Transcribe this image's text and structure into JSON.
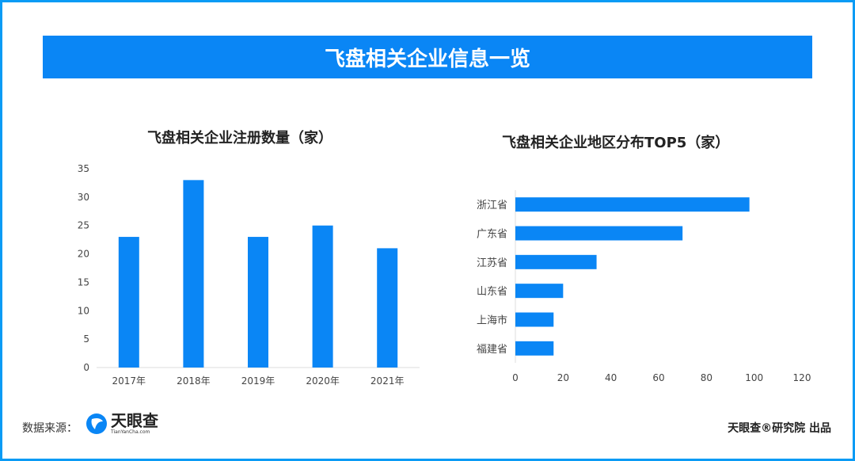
{
  "header": {
    "title": "飞盘相关企业信息一览"
  },
  "footer": {
    "source_label": "数据来源：",
    "logo_text": "天眼查",
    "logo_sub": "TianYanCha.com",
    "publisher": "天眼查®研究院 出品"
  },
  "colors": {
    "bar": "#0a86f5",
    "banner": "#0a86f5",
    "frame": "#0a9bf5"
  },
  "chart_data": [
    {
      "type": "bar",
      "title": "飞盘相关企业注册数量（家）",
      "categories": [
        "2017年",
        "2018年",
        "2019年",
        "2020年",
        "2021年"
      ],
      "values": [
        23,
        33,
        23,
        25,
        21
      ],
      "ylim": [
        0,
        35
      ],
      "yticks": [
        0,
        5,
        10,
        15,
        20,
        25,
        30,
        35
      ],
      "grid": false
    },
    {
      "type": "bar",
      "orientation": "horizontal",
      "title": "飞盘相关企业地区分布TOP5（家）",
      "categories": [
        "浙江省",
        "广东省",
        "江苏省",
        "山东省",
        "上海市",
        "福建省"
      ],
      "values": [
        98,
        70,
        34,
        20,
        16,
        16
      ],
      "xlim": [
        0,
        120
      ],
      "xticks": [
        0,
        20,
        40,
        60,
        80,
        100,
        120
      ],
      "grid": false
    }
  ]
}
